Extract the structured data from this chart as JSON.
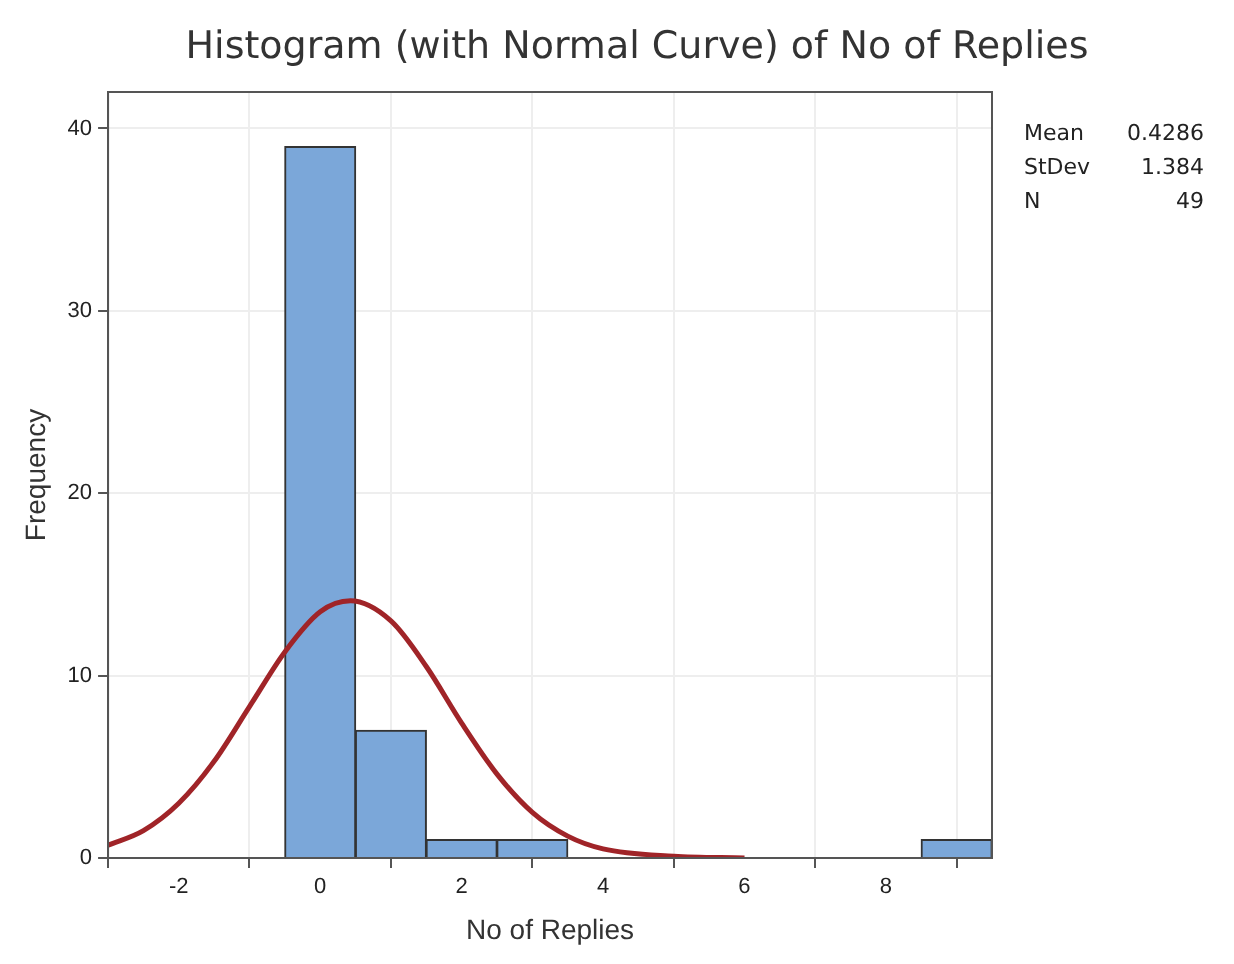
{
  "chart_data": {
    "type": "histogram",
    "title": "Histogram (with Normal Curve) of No of Replies",
    "xlabel": "No of Replies",
    "ylabel": "Frequency",
    "bins": [
      -0.5,
      0.5,
      1.5,
      2.5,
      3.5,
      4.5,
      5.5,
      6.5,
      7.5,
      8.5,
      9.5
    ],
    "values": [
      39,
      7,
      1,
      1,
      0,
      0,
      0,
      0,
      0,
      1
    ],
    "color": "#7ba7d9",
    "series": [
      {
        "type": "line",
        "color": "#a02428",
        "x": [
          -3,
          -2.5,
          -2,
          -1.5,
          -1,
          -0.5,
          0,
          0.4286,
          1,
          1.5,
          2,
          2.5,
          3,
          3.5,
          4,
          5,
          6
        ],
        "values": [
          0.7,
          1.5,
          3,
          5.3,
          8.3,
          11.3,
          13.5,
          14.1,
          13,
          10.5,
          7.4,
          4.6,
          2.5,
          1.2,
          0.5,
          0.1,
          0
        ]
      }
    ],
    "xlim": [
      -3,
      9.5
    ],
    "xticks": [
      -2,
      0,
      2,
      4,
      6,
      8
    ],
    "ylim": [
      0,
      42
    ],
    "yticks": [
      0,
      10,
      20,
      30,
      40
    ],
    "grid": true,
    "legend": false,
    "marker": "none",
    "annotations": [
      "Mean 0.4286",
      "StDev 1.384",
      "N 49"
    ]
  }
}
